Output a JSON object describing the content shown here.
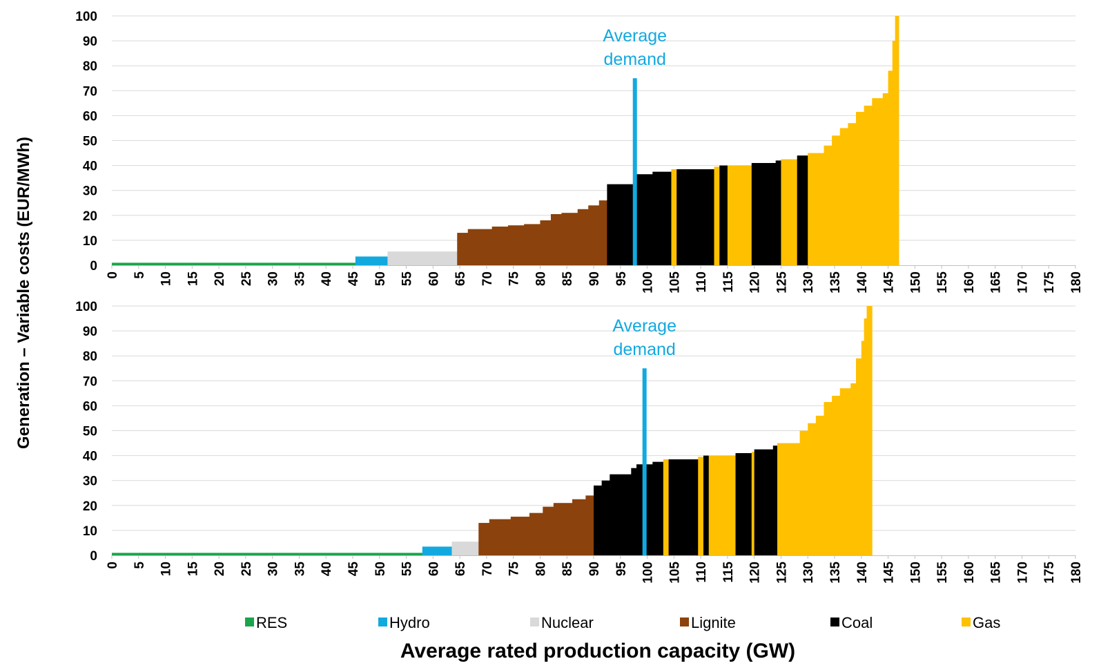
{
  "chart_data": {
    "type": "bar",
    "ylabel": "Generation – Variable costs  (EUR/MWh)",
    "xlabel": "Average rated production capacity  (GW)",
    "xlim": [
      0,
      180
    ],
    "ylim": [
      0,
      100
    ],
    "x_ticks": [
      0,
      5,
      10,
      15,
      20,
      25,
      30,
      35,
      40,
      45,
      50,
      55,
      60,
      65,
      70,
      75,
      80,
      85,
      90,
      95,
      100,
      105,
      110,
      115,
      120,
      125,
      130,
      135,
      140,
      145,
      150,
      155,
      160,
      165,
      170,
      175,
      180
    ],
    "y_ticks": [
      0,
      10,
      20,
      30,
      40,
      50,
      60,
      70,
      80,
      90,
      100
    ],
    "grid": "horizontal",
    "legend_position": "bottom",
    "legend": [
      {
        "name": "RES",
        "color": "#1aa54b"
      },
      {
        "name": "Hydro",
        "color": "#12a9df"
      },
      {
        "name": "Nuclear",
        "color": "#d9d9d9"
      },
      {
        "name": "Lignite",
        "color": "#8b420c"
      },
      {
        "name": "Coal",
        "color": "#000000"
      },
      {
        "name": "Gas",
        "color": "#ffc000"
      }
    ],
    "panels": [
      {
        "annotation": {
          "line1": "Average",
          "line2": "demand",
          "x": 97.7,
          "y_top": 75
        },
        "segments": [
          {
            "type": "RES",
            "x0": 0,
            "x1": 45.5,
            "y": 1
          },
          {
            "type": "Hydro",
            "x0": 45.5,
            "x1": 51.5,
            "y": 3.5
          },
          {
            "type": "Nuclear",
            "x0": 51.5,
            "x1": 64.5,
            "y": 5.5
          },
          {
            "type": "Lignite",
            "x0": 64.5,
            "x1": 66.5,
            "y": 13
          },
          {
            "type": "Lignite",
            "x0": 66.5,
            "x1": 71,
            "y": 14.5
          },
          {
            "type": "Lignite",
            "x0": 71,
            "x1": 74,
            "y": 15.5
          },
          {
            "type": "Lignite",
            "x0": 74,
            "x1": 77,
            "y": 16
          },
          {
            "type": "Lignite",
            "x0": 77,
            "x1": 80,
            "y": 16.5
          },
          {
            "type": "Lignite",
            "x0": 80,
            "x1": 82,
            "y": 18
          },
          {
            "type": "Lignite",
            "x0": 82,
            "x1": 84,
            "y": 20.5
          },
          {
            "type": "Lignite",
            "x0": 84,
            "x1": 87,
            "y": 21
          },
          {
            "type": "Lignite",
            "x0": 87,
            "x1": 89,
            "y": 22.5
          },
          {
            "type": "Lignite",
            "x0": 89,
            "x1": 91,
            "y": 24
          },
          {
            "type": "Lignite",
            "x0": 91,
            "x1": 92.5,
            "y": 26
          },
          {
            "type": "Coal",
            "x0": 92.5,
            "x1": 98,
            "y": 32.5
          },
          {
            "type": "Coal",
            "x0": 98,
            "x1": 101,
            "y": 36.5
          },
          {
            "type": "Coal",
            "x0": 101,
            "x1": 104.5,
            "y": 37.5
          },
          {
            "type": "Gas",
            "x0": 104.5,
            "x1": 105.5,
            "y": 38.5
          },
          {
            "type": "Coal",
            "x0": 105.5,
            "x1": 112.5,
            "y": 38.5
          },
          {
            "type": "Gas",
            "x0": 112.5,
            "x1": 113.5,
            "y": 39.5
          },
          {
            "type": "Coal",
            "x0": 113.5,
            "x1": 115,
            "y": 40
          },
          {
            "type": "Gas",
            "x0": 115,
            "x1": 119.5,
            "y": 40
          },
          {
            "type": "Coal",
            "x0": 119.5,
            "x1": 124,
            "y": 41
          },
          {
            "type": "Coal",
            "x0": 124,
            "x1": 125,
            "y": 42
          },
          {
            "type": "Gas",
            "x0": 125,
            "x1": 128,
            "y": 42.5
          },
          {
            "type": "Coal",
            "x0": 128,
            "x1": 130,
            "y": 44
          },
          {
            "type": "Gas",
            "x0": 130,
            "x1": 133,
            "y": 45
          },
          {
            "type": "Gas",
            "x0": 133,
            "x1": 134.5,
            "y": 48
          },
          {
            "type": "Gas",
            "x0": 134.5,
            "x1": 136,
            "y": 52
          },
          {
            "type": "Gas",
            "x0": 136,
            "x1": 137.5,
            "y": 55
          },
          {
            "type": "Gas",
            "x0": 137.5,
            "x1": 139,
            "y": 57
          },
          {
            "type": "Gas",
            "x0": 139,
            "x1": 140.5,
            "y": 61.5
          },
          {
            "type": "Gas",
            "x0": 140.5,
            "x1": 142,
            "y": 64
          },
          {
            "type": "Gas",
            "x0": 142,
            "x1": 144,
            "y": 67
          },
          {
            "type": "Gas",
            "x0": 144,
            "x1": 145,
            "y": 69
          },
          {
            "type": "Gas",
            "x0": 145,
            "x1": 145.8,
            "y": 78
          },
          {
            "type": "Gas",
            "x0": 145.8,
            "x1": 146.3,
            "y": 90
          },
          {
            "type": "Gas",
            "x0": 146.3,
            "x1": 147,
            "y": 100
          }
        ]
      },
      {
        "annotation": {
          "line1": "Average",
          "line2": "demand",
          "x": 99.5,
          "y_top": 75
        },
        "segments": [
          {
            "type": "RES",
            "x0": 0,
            "x1": 58,
            "y": 1
          },
          {
            "type": "Hydro",
            "x0": 58,
            "x1": 63.5,
            "y": 3.5
          },
          {
            "type": "Nuclear",
            "x0": 63.5,
            "x1": 68.5,
            "y": 5.5
          },
          {
            "type": "Lignite",
            "x0": 68.5,
            "x1": 70.5,
            "y": 13
          },
          {
            "type": "Lignite",
            "x0": 70.5,
            "x1": 74.5,
            "y": 14.5
          },
          {
            "type": "Lignite",
            "x0": 74.5,
            "x1": 78,
            "y": 15.5
          },
          {
            "type": "Lignite",
            "x0": 78,
            "x1": 80.5,
            "y": 17
          },
          {
            "type": "Lignite",
            "x0": 80.5,
            "x1": 82.5,
            "y": 19.5
          },
          {
            "type": "Lignite",
            "x0": 82.5,
            "x1": 86,
            "y": 21
          },
          {
            "type": "Lignite",
            "x0": 86,
            "x1": 88.5,
            "y": 22.5
          },
          {
            "type": "Lignite",
            "x0": 88.5,
            "x1": 90,
            "y": 24
          },
          {
            "type": "Coal",
            "x0": 90,
            "x1": 91.5,
            "y": 28
          },
          {
            "type": "Coal",
            "x0": 91.5,
            "x1": 93,
            "y": 30
          },
          {
            "type": "Coal",
            "x0": 93,
            "x1": 97,
            "y": 32.5
          },
          {
            "type": "Coal",
            "x0": 97,
            "x1": 98,
            "y": 35
          },
          {
            "type": "Coal",
            "x0": 98,
            "x1": 101,
            "y": 36.5
          },
          {
            "type": "Coal",
            "x0": 101,
            "x1": 103,
            "y": 37.5
          },
          {
            "type": "Gas",
            "x0": 103,
            "x1": 104,
            "y": 38.5
          },
          {
            "type": "Coal",
            "x0": 104,
            "x1": 109.5,
            "y": 38.5
          },
          {
            "type": "Gas",
            "x0": 109.5,
            "x1": 110.5,
            "y": 39.5
          },
          {
            "type": "Coal",
            "x0": 110.5,
            "x1": 111.5,
            "y": 40
          },
          {
            "type": "Gas",
            "x0": 111.5,
            "x1": 116.5,
            "y": 40
          },
          {
            "type": "Coal",
            "x0": 116.5,
            "x1": 119.5,
            "y": 41
          },
          {
            "type": "Gas",
            "x0": 119.5,
            "x1": 120,
            "y": 41.5
          },
          {
            "type": "Coal",
            "x0": 120,
            "x1": 123.5,
            "y": 42.5
          },
          {
            "type": "Coal",
            "x0": 123.5,
            "x1": 124.3,
            "y": 44
          },
          {
            "type": "Gas",
            "x0": 124.3,
            "x1": 128.5,
            "y": 45
          },
          {
            "type": "Gas",
            "x0": 128.5,
            "x1": 130,
            "y": 50
          },
          {
            "type": "Gas",
            "x0": 130,
            "x1": 131.5,
            "y": 53
          },
          {
            "type": "Gas",
            "x0": 131.5,
            "x1": 133,
            "y": 56
          },
          {
            "type": "Gas",
            "x0": 133,
            "x1": 134.5,
            "y": 61.5
          },
          {
            "type": "Gas",
            "x0": 134.5,
            "x1": 136,
            "y": 64
          },
          {
            "type": "Gas",
            "x0": 136,
            "x1": 138,
            "y": 67
          },
          {
            "type": "Gas",
            "x0": 138,
            "x1": 139,
            "y": 69
          },
          {
            "type": "Gas",
            "x0": 139,
            "x1": 140,
            "y": 79
          },
          {
            "type": "Gas",
            "x0": 140,
            "x1": 140.5,
            "y": 86
          },
          {
            "type": "Gas",
            "x0": 140.5,
            "x1": 141,
            "y": 95
          },
          {
            "type": "Gas",
            "x0": 141,
            "x1": 142,
            "y": 100
          }
        ]
      }
    ]
  }
}
